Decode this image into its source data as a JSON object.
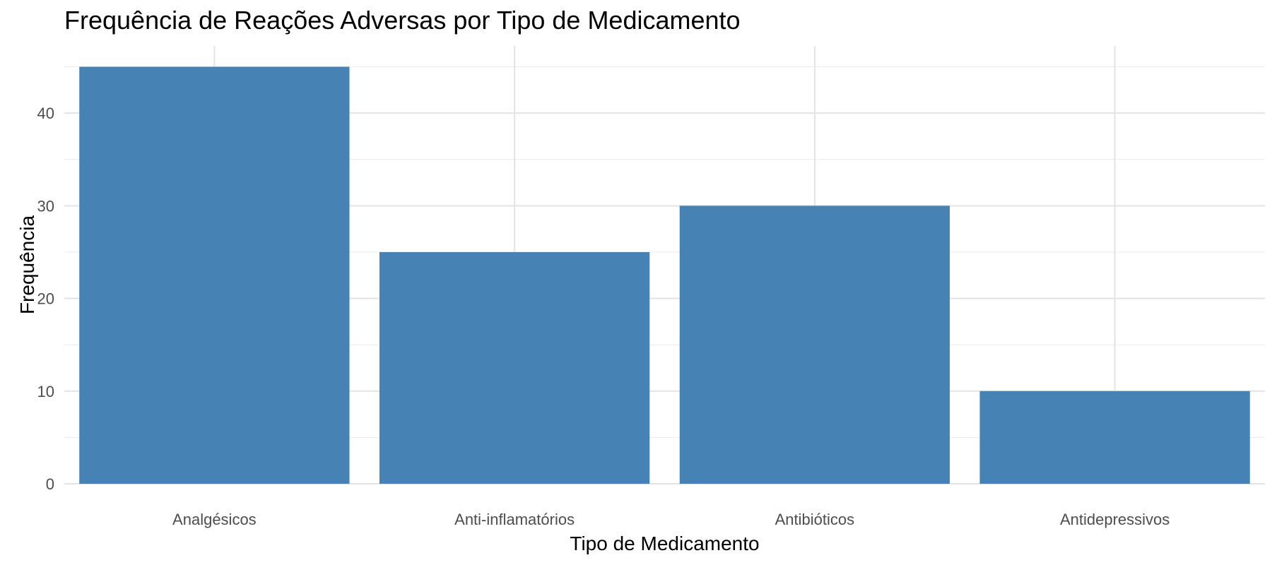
{
  "chart_data": {
    "type": "bar",
    "title": "Frequência de Reações Adversas por Tipo de Medicamento",
    "xlabel": "Tipo de Medicamento",
    "ylabel": "Frequência",
    "categories": [
      "Analgésicos",
      "Anti-inflamatórios",
      "Antibióticos",
      "Antidepressivos"
    ],
    "values": [
      45,
      25,
      30,
      10
    ],
    "ylim": [
      0,
      47.25
    ],
    "yticks": [
      0,
      10,
      20,
      30,
      40
    ],
    "bar_color": "#4682B4",
    "grid": true,
    "legend": "none"
  }
}
